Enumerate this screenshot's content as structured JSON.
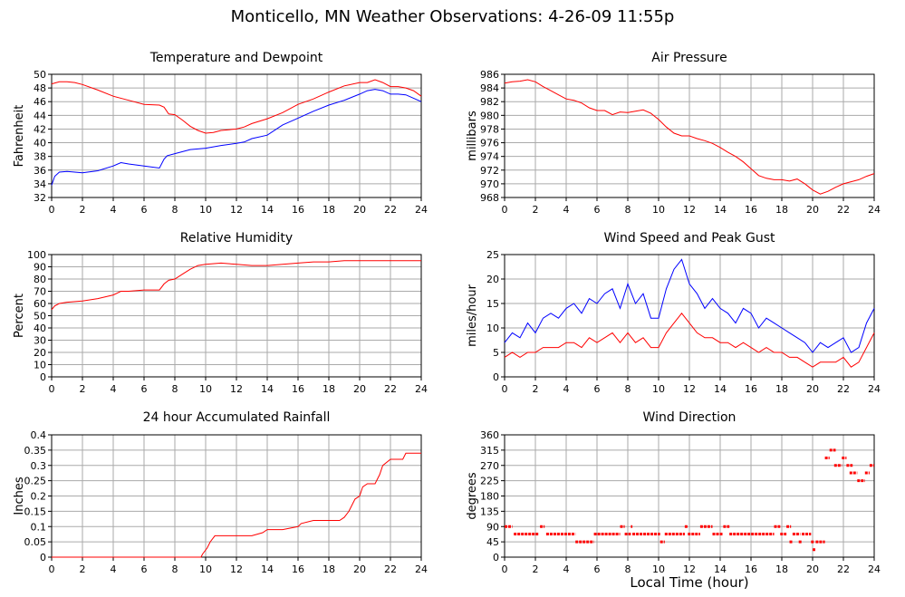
{
  "page_title": "Monticello, MN Weather Observations: 4-26-09 11:55p",
  "x_axis_label": "Local Time (hour)",
  "colors": {
    "red": "#ff0000",
    "blue": "#0000ff",
    "grid": "#aaaaaa",
    "axis": "#000000"
  },
  "chart_data": [
    {
      "id": "temp",
      "type": "line",
      "title": "Temperature and Dewpoint",
      "xlabel": "",
      "ylabel": "Fahrenheit",
      "xlim": [
        0,
        24
      ],
      "ylim": [
        32,
        50
      ],
      "xticks": [
        0,
        2,
        4,
        6,
        8,
        10,
        12,
        14,
        16,
        18,
        20,
        22,
        24
      ],
      "yticks": [
        32,
        34,
        36,
        38,
        40,
        42,
        44,
        46,
        48,
        50
      ],
      "series": [
        {
          "color": "#ff0000",
          "x": [
            0,
            0.5,
            1,
            1.5,
            2,
            3,
            4,
            5,
            6,
            7,
            7.3,
            7.6,
            8,
            8.5,
            9,
            9.5,
            10,
            10.5,
            11,
            12,
            12.5,
            13,
            14,
            15,
            16,
            17,
            18,
            19,
            20,
            20.5,
            21,
            21.5,
            22,
            22.5,
            23,
            23.5,
            24
          ],
          "y": [
            48.6,
            48.9,
            48.9,
            48.8,
            48.5,
            47.7,
            46.8,
            46.2,
            45.6,
            45.5,
            45.2,
            44.2,
            44.1,
            43.3,
            42.4,
            41.8,
            41.4,
            41.5,
            41.8,
            42.0,
            42.3,
            42.8,
            43.5,
            44.4,
            45.6,
            46.4,
            47.4,
            48.3,
            48.8,
            48.8,
            49.2,
            48.8,
            48.2,
            48.2,
            48.0,
            47.6,
            46.8
          ]
        },
        {
          "color": "#0000ff",
          "x": [
            0,
            0.2,
            0.5,
            1,
            2,
            3,
            4,
            4.5,
            5,
            6,
            7,
            7.3,
            7.5,
            8,
            9,
            10,
            11,
            12,
            12.5,
            13,
            14,
            15,
            16,
            17,
            18,
            19,
            20,
            20.5,
            21,
            21.5,
            22,
            22.5,
            23,
            23.5,
            24
          ],
          "y": [
            33.8,
            35.1,
            35.7,
            35.8,
            35.6,
            35.9,
            36.6,
            37.1,
            36.9,
            36.6,
            36.3,
            37.6,
            38.1,
            38.4,
            39.0,
            39.2,
            39.6,
            39.9,
            40.1,
            40.6,
            41.1,
            42.6,
            43.6,
            44.6,
            45.5,
            46.2,
            47.1,
            47.6,
            47.8,
            47.6,
            47.1,
            47.1,
            47.0,
            46.5,
            46.0
          ]
        }
      ]
    },
    {
      "id": "pressure",
      "type": "line",
      "title": "Air Pressure",
      "xlabel": "",
      "ylabel": "millibars",
      "xlim": [
        0,
        24
      ],
      "ylim": [
        968,
        986
      ],
      "xticks": [
        0,
        2,
        4,
        6,
        8,
        10,
        12,
        14,
        16,
        18,
        20,
        22,
        24
      ],
      "yticks": [
        968,
        970,
        972,
        974,
        976,
        978,
        980,
        982,
        984,
        986
      ],
      "series": [
        {
          "color": "#ff0000",
          "x": [
            0,
            0.5,
            1,
            1.5,
            2,
            2.5,
            3,
            3.5,
            4,
            4.5,
            5,
            5.5,
            6,
            6.5,
            7,
            7.5,
            8,
            8.5,
            9,
            9.5,
            10,
            10.5,
            11,
            11.5,
            12,
            12.5,
            13,
            13.5,
            14,
            14.5,
            15,
            15.5,
            16,
            16.5,
            17,
            17.5,
            18,
            18.5,
            19,
            19.5,
            20,
            20.5,
            21,
            21.5,
            22,
            22.5,
            23,
            23.5,
            24
          ],
          "y": [
            984.7,
            984.9,
            985.0,
            985.2,
            984.9,
            984.2,
            983.6,
            983.0,
            982.4,
            982.2,
            981.8,
            981.1,
            980.7,
            980.7,
            980.1,
            980.5,
            980.4,
            980.6,
            980.8,
            980.3,
            979.4,
            978.3,
            977.4,
            977.0,
            977.0,
            976.6,
            976.3,
            975.9,
            975.3,
            974.6,
            974.0,
            973.2,
            972.2,
            971.2,
            970.8,
            970.6,
            970.6,
            970.4,
            970.7,
            970.0,
            969.1,
            968.5,
            968.9,
            969.5,
            970.0,
            970.3,
            970.6,
            971.1,
            971.5
          ]
        }
      ]
    },
    {
      "id": "humidity",
      "type": "line",
      "title": "Relative Humidity",
      "xlabel": "",
      "ylabel": "Percent",
      "xlim": [
        0,
        24
      ],
      "ylim": [
        0,
        100
      ],
      "xticks": [
        0,
        2,
        4,
        6,
        8,
        10,
        12,
        14,
        16,
        18,
        20,
        22,
        24
      ],
      "yticks": [
        0,
        10,
        20,
        30,
        40,
        50,
        60,
        70,
        80,
        90,
        100
      ],
      "series": [
        {
          "color": "#ff0000",
          "x": [
            0,
            0.2,
            0.5,
            1,
            2,
            3,
            4,
            4.5,
            5,
            6,
            7,
            7.3,
            7.6,
            8,
            8.5,
            9,
            9.5,
            10,
            11,
            12,
            13,
            14,
            15,
            16,
            17,
            18,
            19,
            20,
            21,
            22,
            23,
            24
          ],
          "y": [
            55,
            58,
            60,
            61,
            62,
            64,
            67,
            70,
            70,
            71,
            71,
            76,
            79,
            80,
            84,
            88,
            91,
            92,
            93,
            92,
            91,
            91,
            92,
            93,
            94,
            94,
            95,
            95,
            95,
            95,
            95,
            95
          ]
        }
      ]
    },
    {
      "id": "wind",
      "type": "line",
      "title": "Wind Speed and Peak Gust",
      "xlabel": "",
      "ylabel": "miles/hour",
      "xlim": [
        0,
        24
      ],
      "ylim": [
        0,
        25
      ],
      "xticks": [
        0,
        2,
        4,
        6,
        8,
        10,
        12,
        14,
        16,
        18,
        20,
        22,
        24
      ],
      "yticks": [
        0,
        5,
        10,
        15,
        20,
        25
      ],
      "series": [
        {
          "color": "#0000ff",
          "x": [
            0,
            0.5,
            1,
            1.5,
            2,
            2.5,
            3,
            3.5,
            4,
            4.5,
            5,
            5.5,
            6,
            6.5,
            7,
            7.5,
            8,
            8.5,
            9,
            9.5,
            10,
            10.5,
            11,
            11.5,
            12,
            12.5,
            13,
            13.5,
            14,
            14.5,
            15,
            15.5,
            16,
            16.5,
            17,
            17.5,
            18,
            18.5,
            19,
            19.5,
            20,
            20.5,
            21,
            21.5,
            22,
            22.5,
            23,
            23.5,
            24
          ],
          "y": [
            7,
            9,
            8,
            11,
            9,
            12,
            13,
            12,
            14,
            15,
            13,
            16,
            15,
            17,
            18,
            14,
            19,
            15,
            17,
            12,
            12,
            18,
            22,
            24,
            19,
            17,
            14,
            16,
            14,
            13,
            11,
            14,
            13,
            10,
            12,
            11,
            10,
            9,
            8,
            7,
            5,
            7,
            6,
            7,
            8,
            5,
            6,
            11,
            14
          ]
        },
        {
          "color": "#ff0000",
          "x": [
            0,
            0.5,
            1,
            1.5,
            2,
            2.5,
            3,
            3.5,
            4,
            4.5,
            5,
            5.5,
            6,
            6.5,
            7,
            7.5,
            8,
            8.5,
            9,
            9.5,
            10,
            10.5,
            11,
            11.5,
            12,
            12.5,
            13,
            13.5,
            14,
            14.5,
            15,
            15.5,
            16,
            16.5,
            17,
            17.5,
            18,
            18.5,
            19,
            19.5,
            20,
            20.5,
            21,
            21.5,
            22,
            22.5,
            23,
            23.5,
            24
          ],
          "y": [
            4,
            5,
            4,
            5,
            5,
            6,
            6,
            6,
            7,
            7,
            6,
            8,
            7,
            8,
            9,
            7,
            9,
            7,
            8,
            6,
            6,
            9,
            11,
            13,
            11,
            9,
            8,
            8,
            7,
            7,
            6,
            7,
            6,
            5,
            6,
            5,
            5,
            4,
            4,
            3,
            2,
            3,
            3,
            3,
            4,
            2,
            3,
            6,
            9
          ]
        }
      ]
    },
    {
      "id": "rain",
      "type": "line",
      "title": "24 hour Accumulated Rainfall",
      "xlabel": "",
      "ylabel": "Inches",
      "xlim": [
        0,
        24
      ],
      "ylim": [
        0,
        0.4
      ],
      "xticks": [
        0,
        2,
        4,
        6,
        8,
        10,
        12,
        14,
        16,
        18,
        20,
        22,
        24
      ],
      "yticks": [
        0,
        0.05,
        0.1,
        0.15,
        0.2,
        0.25,
        0.3,
        0.35,
        0.4
      ],
      "series": [
        {
          "color": "#ff0000",
          "x": [
            0,
            9.7,
            9.8,
            10.1,
            10.3,
            10.6,
            11,
            12,
            13,
            13.7,
            14,
            15,
            16,
            16.2,
            17,
            18,
            18.7,
            19,
            19.3,
            19.5,
            19.7,
            20,
            20.2,
            20.5,
            21,
            21.3,
            21.5,
            22,
            22.5,
            22.8,
            23,
            24
          ],
          "y": [
            0,
            0,
            0.01,
            0.03,
            0.05,
            0.07,
            0.07,
            0.07,
            0.07,
            0.08,
            0.09,
            0.09,
            0.1,
            0.11,
            0.12,
            0.12,
            0.12,
            0.13,
            0.15,
            0.17,
            0.19,
            0.2,
            0.23,
            0.24,
            0.24,
            0.27,
            0.3,
            0.32,
            0.32,
            0.32,
            0.34,
            0.34
          ]
        }
      ]
    },
    {
      "id": "direction",
      "type": "scatter",
      "title": "Wind Direction",
      "xlabel": "Local Time (hour)",
      "ylabel": "degrees",
      "xlim": [
        0,
        24
      ],
      "ylim": [
        0,
        360
      ],
      "xticks": [
        0,
        2,
        4,
        6,
        8,
        10,
        12,
        14,
        16,
        18,
        20,
        22,
        24
      ],
      "yticks": [
        0,
        45,
        90,
        135,
        180,
        225,
        270,
        315,
        360
      ],
      "series": [
        {
          "color": "#ff0000",
          "marker": "dash",
          "segments": [
            {
              "x0": 0,
              "x1": 0.5,
              "y": 90
            },
            {
              "x0": 0.6,
              "x1": 2.2,
              "y": 68
            },
            {
              "x0": 2.3,
              "x1": 2.6,
              "y": 90
            },
            {
              "x0": 2.7,
              "x1": 4.6,
              "y": 68
            },
            {
              "x0": 4.6,
              "x1": 5.8,
              "y": 45
            },
            {
              "x0": 5.8,
              "x1": 7.5,
              "y": 68
            },
            {
              "x0": 7.5,
              "x1": 7.8,
              "y": 90
            },
            {
              "x0": 7.8,
              "x1": 8.2,
              "y": 68
            },
            {
              "x0": 8.2,
              "x1": 8.3,
              "y": 90
            },
            {
              "x0": 8.3,
              "x1": 10.1,
              "y": 68
            },
            {
              "x0": 10.1,
              "x1": 10.4,
              "y": 45
            },
            {
              "x0": 10.4,
              "x1": 11.7,
              "y": 68
            },
            {
              "x0": 11.7,
              "x1": 11.9,
              "y": 90
            },
            {
              "x0": 11.9,
              "x1": 12.7,
              "y": 68
            },
            {
              "x0": 12.7,
              "x1": 13.5,
              "y": 90
            },
            {
              "x0": 13.5,
              "x1": 14.2,
              "y": 68
            },
            {
              "x0": 14.2,
              "x1": 14.6,
              "y": 90
            },
            {
              "x0": 14.6,
              "x1": 17.5,
              "y": 68
            },
            {
              "x0": 17.5,
              "x1": 17.9,
              "y": 90
            },
            {
              "x0": 17.9,
              "x1": 18.3,
              "y": 68
            },
            {
              "x0": 18.3,
              "x1": 18.6,
              "y": 90
            },
            {
              "x0": 18.5,
              "x1": 18.7,
              "y": 45
            },
            {
              "x0": 18.7,
              "x1": 19.2,
              "y": 68
            },
            {
              "x0": 19.1,
              "x1": 19.3,
              "y": 45
            },
            {
              "x0": 19.3,
              "x1": 19.9,
              "y": 68
            },
            {
              "x0": 19.9,
              "x1": 20.1,
              "y": 45
            },
            {
              "x0": 20,
              "x1": 20.2,
              "y": 22
            },
            {
              "x0": 20.2,
              "x1": 20.8,
              "y": 45
            },
            {
              "x0": 20.8,
              "x1": 21.1,
              "y": 292
            },
            {
              "x0": 21.1,
              "x1": 21.5,
              "y": 315
            },
            {
              "x0": 21.4,
              "x1": 21.9,
              "y": 270
            },
            {
              "x0": 21.9,
              "x1": 22.2,
              "y": 292
            },
            {
              "x0": 22.2,
              "x1": 22.6,
              "y": 270
            },
            {
              "x0": 22.4,
              "x1": 22.9,
              "y": 248
            },
            {
              "x0": 22.9,
              "x1": 23.4,
              "y": 225
            },
            {
              "x0": 23.4,
              "x1": 23.7,
              "y": 248
            },
            {
              "x0": 23.7,
              "x1": 24,
              "y": 270
            }
          ]
        }
      ]
    }
  ]
}
